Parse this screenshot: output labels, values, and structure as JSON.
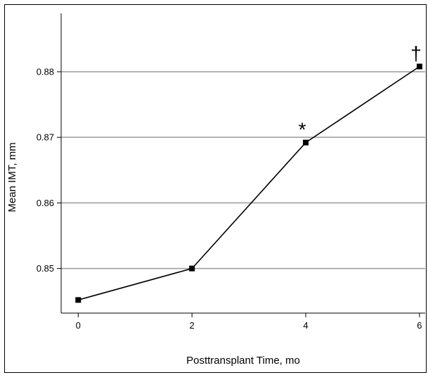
{
  "chart_data": {
    "type": "line",
    "title": "",
    "xlabel": "Posttransplant Time, mo",
    "ylabel": "Mean IMT, mm",
    "x": [
      0,
      2,
      4,
      6
    ],
    "x_ticks": [
      "0",
      "2",
      "4",
      "6"
    ],
    "y_ticks": [
      "0.85",
      "0.86",
      "0.87",
      "0.88"
    ],
    "y_tick_values": [
      0.85,
      0.86,
      0.87,
      0.88
    ],
    "xlim": [
      -0.3,
      6.1
    ],
    "ylim": [
      0.8432,
      0.8889
    ],
    "grid": "horizontal",
    "series": [
      {
        "name": "",
        "values": [
          0.8452,
          0.85,
          0.8692,
          0.8808
        ],
        "marker": "square",
        "color": "#000000"
      }
    ],
    "annotations": [
      {
        "x": 4,
        "y": 0.8692,
        "text": "*"
      },
      {
        "x": 6,
        "y": 0.8808,
        "text": "†"
      }
    ]
  }
}
